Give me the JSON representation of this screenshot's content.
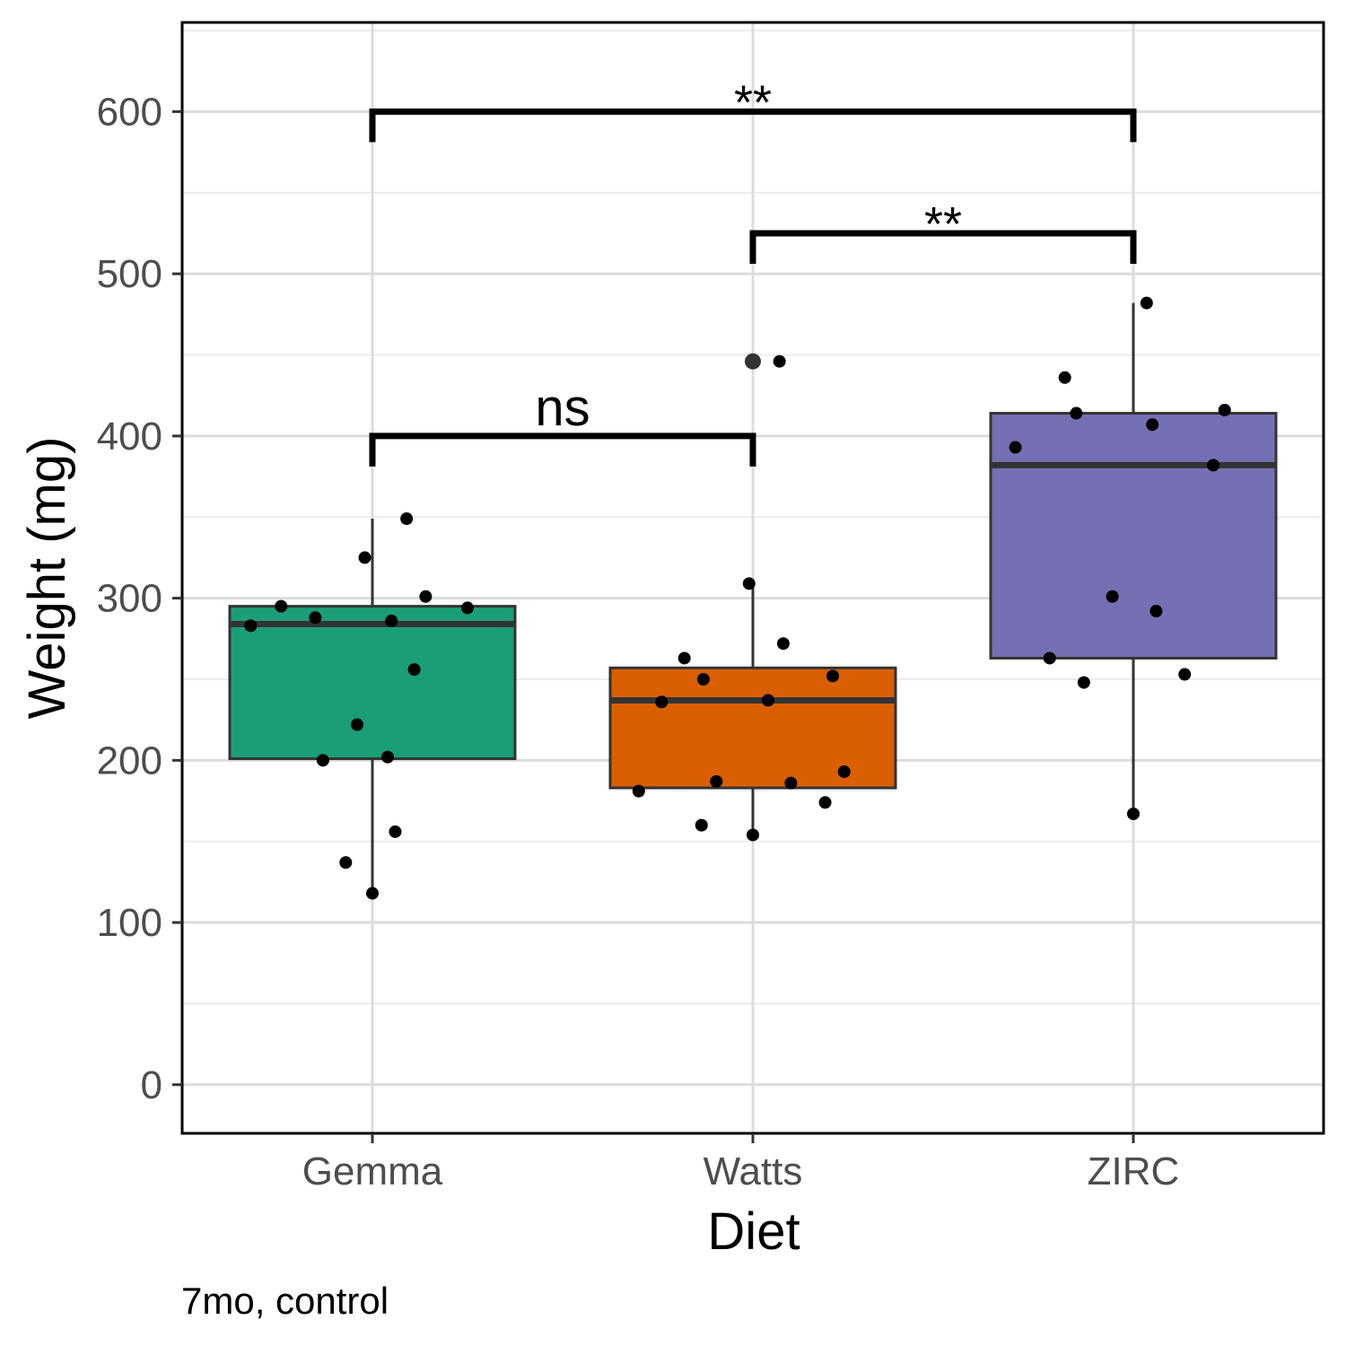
{
  "chart_data": {
    "type": "box",
    "xlabel": "Diet",
    "ylabel": "Weight (mg)",
    "caption": "7mo, control",
    "categories": [
      "Gemma",
      "Watts",
      "ZIRC"
    ],
    "ylim": [
      -30,
      655
    ],
    "yticks": [
      0,
      100,
      200,
      300,
      400,
      500,
      600
    ],
    "grid": true,
    "boxes": [
      {
        "category": "Gemma",
        "color": "#1b9e77",
        "q1": 201,
        "median": 284,
        "q3": 295,
        "whisker_low": 118,
        "whisker_high": 349,
        "outliers": []
      },
      {
        "category": "Watts",
        "color": "#d95f02",
        "q1": 183,
        "median": 237,
        "q3": 257,
        "whisker_low": 154,
        "whisker_high": 309,
        "outliers": [
          446
        ]
      },
      {
        "category": "ZIRC",
        "color": "#7570b3",
        "q1": 263,
        "median": 382,
        "q3": 414,
        "whisker_low": 167,
        "whisker_high": 482,
        "outliers": []
      }
    ],
    "points": [
      {
        "category": "Gemma",
        "values": [
          283,
          295,
          288,
          325,
          286,
          301,
          349,
          294,
          256,
          222,
          202,
          200,
          156,
          137,
          118
        ],
        "offsets": [
          -0.32,
          -0.24,
          -0.15,
          -0.02,
          0.05,
          0.14,
          0.09,
          0.25,
          0.11,
          -0.04,
          0.04,
          -0.13,
          0.06,
          -0.07,
          0.0
        ]
      },
      {
        "category": "Watts",
        "values": [
          446,
          309,
          272,
          263,
          250,
          236,
          237,
          252,
          187,
          186,
          193,
          181,
          174,
          160,
          154
        ],
        "offsets": [
          0.07,
          -0.01,
          0.08,
          -0.18,
          -0.13,
          -0.24,
          0.04,
          0.21,
          -0.096,
          0.1,
          0.24,
          -0.3,
          0.19,
          -0.135,
          0.0
        ]
      },
      {
        "category": "ZIRC",
        "values": [
          482,
          436,
          414,
          407,
          416,
          393,
          382,
          301,
          292,
          263,
          248,
          253,
          167
        ],
        "offsets": [
          0.035,
          -0.18,
          -0.15,
          0.05,
          0.24,
          -0.31,
          0.21,
          -0.055,
          0.06,
          -0.22,
          -0.13,
          0.135,
          0.0
        ]
      }
    ],
    "comparisons": [
      {
        "from": "Gemma",
        "to": "Watts",
        "y": 400,
        "label": "ns"
      },
      {
        "from": "Watts",
        "to": "ZIRC",
        "y": 525,
        "label": "**"
      },
      {
        "from": "Gemma",
        "to": "ZIRC",
        "y": 600,
        "label": "**"
      }
    ]
  }
}
